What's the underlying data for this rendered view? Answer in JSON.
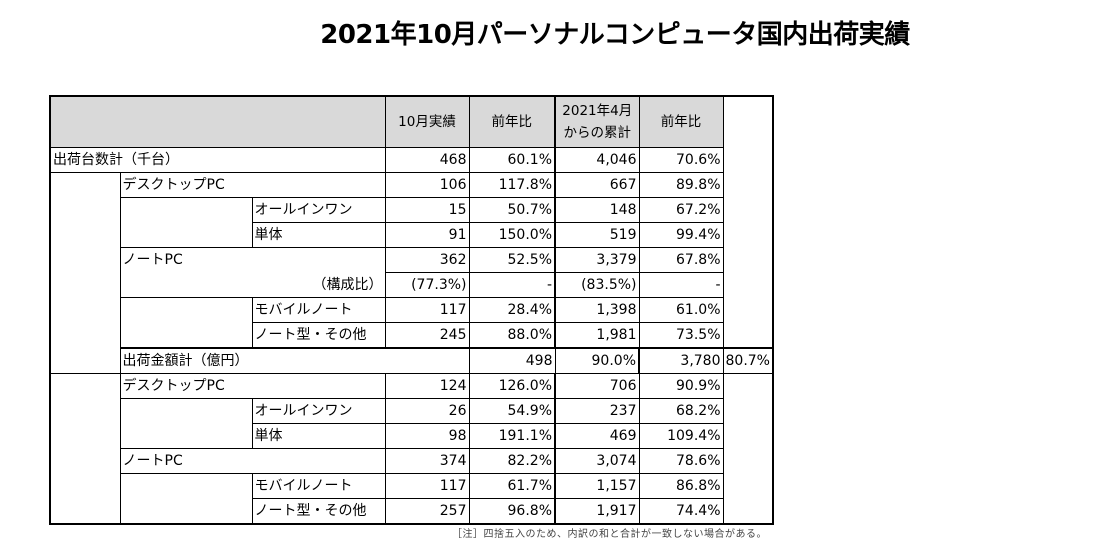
{
  "title": "2021年10月パーソナルコンピュータ国内出荷実績",
  "headers": {
    "c1": "10月実績",
    "c2": "前年比",
    "c3a": "2021年4月",
    "c3b": "からの累計",
    "c4": "前年比"
  },
  "units": {
    "total": {
      "label": "出荷台数計（千台）",
      "v": [
        "468",
        "60.1%",
        "4,046",
        "70.6%"
      ]
    },
    "desktop": {
      "label": "デスクトップPC",
      "v": [
        "106",
        "117.8%",
        "667",
        "89.8%"
      ]
    },
    "aio": {
      "label": "オールインワン",
      "v": [
        "15",
        "50.7%",
        "148",
        "67.2%"
      ]
    },
    "single": {
      "label": "単体",
      "v": [
        "91",
        "150.0%",
        "519",
        "99.4%"
      ]
    },
    "note": {
      "label": "ノートPC",
      "v": [
        "362",
        "52.5%",
        "3,379",
        "67.8%"
      ]
    },
    "ratio": {
      "label": "（構成比）",
      "v": [
        "(77.3%)",
        "-",
        "(83.5%)",
        "-"
      ]
    },
    "mobile": {
      "label": "モバイルノート",
      "v": [
        "117",
        "28.4%",
        "1,398",
        "61.0%"
      ]
    },
    "other": {
      "label": "ノート型・その他",
      "v": [
        "245",
        "88.0%",
        "1,981",
        "73.5%"
      ]
    }
  },
  "value": {
    "total": {
      "label": "出荷金額計（億円）",
      "v": [
        "498",
        "90.0%",
        "3,780",
        "80.7%"
      ]
    },
    "desktop": {
      "label": "デスクトップPC",
      "v": [
        "124",
        "126.0%",
        "706",
        "90.9%"
      ]
    },
    "aio": {
      "label": "オールインワン",
      "v": [
        "26",
        "54.9%",
        "237",
        "68.2%"
      ]
    },
    "single": {
      "label": "単体",
      "v": [
        "98",
        "191.1%",
        "469",
        "109.4%"
      ]
    },
    "note": {
      "label": "ノートPC",
      "v": [
        "374",
        "82.2%",
        "3,074",
        "78.6%"
      ]
    },
    "mobile": {
      "label": "モバイルノート",
      "v": [
        "117",
        "61.7%",
        "1,157",
        "86.8%"
      ]
    },
    "other": {
      "label": "ノート型・その他",
      "v": [
        "257",
        "96.8%",
        "1,917",
        "74.4%"
      ]
    }
  },
  "footnote": "［注］四捨五入のため、内訳の和と合計が一致しない場合がある。"
}
